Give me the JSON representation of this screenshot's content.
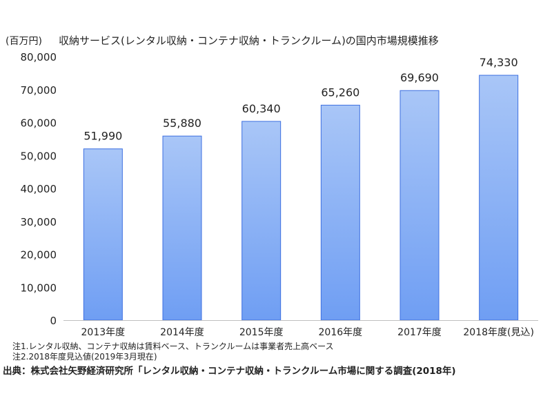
{
  "chart_data": {
    "type": "bar",
    "title": "収納サービス(レンタル収納・コンテナ収納・トランクルーム)の国内市場規模推移",
    "unit_label": "(百万円)",
    "categories": [
      "2013年度",
      "2014年度",
      "2015年度",
      "2016年度",
      "2017年度",
      "2018年度(見込)"
    ],
    "values": [
      51990,
      55880,
      60340,
      65260,
      69690,
      74330
    ],
    "value_labels": [
      "51,990",
      "55,880",
      "60,340",
      "65,260",
      "69,690",
      "74,330"
    ],
    "ylim": [
      0,
      80000
    ],
    "yticks": [
      0,
      10000,
      20000,
      30000,
      40000,
      50000,
      60000,
      70000,
      80000
    ],
    "ytick_labels": [
      "0",
      "10,000",
      "20,000",
      "30,000",
      "40,000",
      "50,000",
      "60,000",
      "70,000",
      "80,000"
    ],
    "grid": false,
    "bar_color_top": "#a9c6f7",
    "bar_color_bottom": "#6f9ef3",
    "bar_stroke": "#3d6fe0"
  },
  "notes": [
    "注1.レンタル収納、コンテナ収納は賃料ベース、トランクルームは事業者売上高ベース",
    "注2.2018年度見込値(2019年3月現在)"
  ],
  "source": "出典：株式会社矢野経済研究所「レンタル収納・コンテナ収納・トランクルーム市場に関する調査(2018年)"
}
